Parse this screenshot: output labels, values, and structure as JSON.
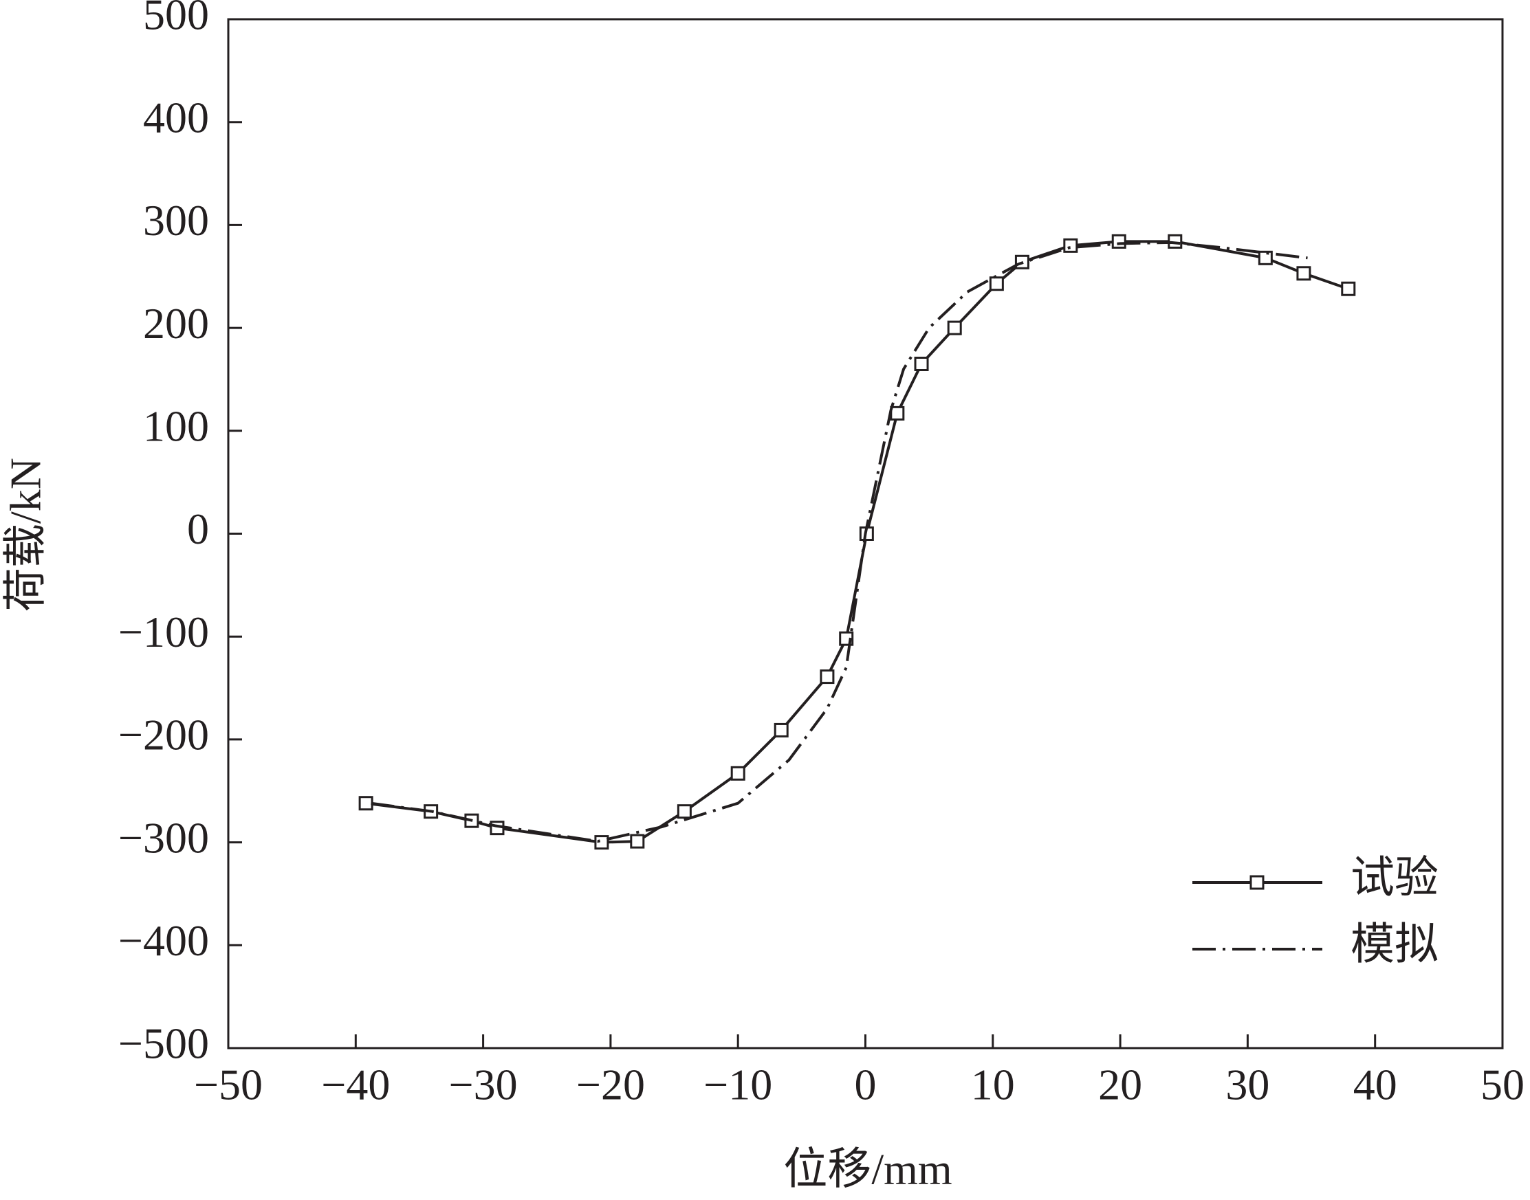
{
  "chart_data": {
    "type": "line",
    "x_label": "位移/mm",
    "y_label": "荷载/kN",
    "xlim": [
      -50,
      50
    ],
    "ylim": [
      -500,
      500
    ],
    "xticks": [
      {
        "value": -50,
        "label": "−50"
      },
      {
        "value": -40,
        "label": "−40"
      },
      {
        "value": -30,
        "label": "−30"
      },
      {
        "value": -20,
        "label": "−20"
      },
      {
        "value": -10,
        "label": "−10"
      },
      0,
      10,
      20,
      30,
      40,
      50
    ],
    "yticks": [
      {
        "value": -500,
        "label": "−500"
      },
      {
        "value": -400,
        "label": "−400"
      },
      {
        "value": -300,
        "label": "−300"
      },
      {
        "value": -200,
        "label": "−200"
      },
      {
        "value": -100,
        "label": "−100"
      },
      0,
      100,
      200,
      300,
      400,
      500
    ],
    "legend": "lower right",
    "series": [
      {
        "name": "试验",
        "color": "#231f20",
        "style": "solid",
        "marker": "square",
        "x": [
          -39.2,
          -34.1,
          -30.9,
          -28.9,
          -20.7,
          -17.9,
          -14.2,
          -10.0,
          -6.6,
          -3.0,
          -1.5,
          0.1,
          2.5,
          4.4,
          7.0,
          10.3,
          12.3,
          16.1,
          19.9,
          24.3,
          31.4,
          34.4,
          37.9
        ],
        "values": [
          -262,
          -270,
          -279,
          -286,
          -300,
          -299,
          -270,
          -233,
          -191,
          -139,
          -102,
          0,
          117,
          165,
          200,
          243,
          264,
          280,
          284,
          284,
          268,
          253,
          238
        ]
      },
      {
        "name": "模拟",
        "color": "#231f20",
        "style": "dashdot",
        "marker": "none",
        "x": [
          -38.8,
          -34,
          -29,
          -21,
          -16,
          -10,
          -6,
          -3,
          -1.5,
          0,
          1,
          2,
          3,
          5,
          8,
          12,
          16,
          20,
          24,
          28,
          32,
          34.7
        ],
        "values": [
          -262,
          -270,
          -284,
          -299,
          -285,
          -262,
          -220,
          -170,
          -130,
          0,
          60,
          120,
          160,
          200,
          235,
          262,
          278,
          282,
          283,
          278,
          272,
          268
        ]
      }
    ]
  }
}
